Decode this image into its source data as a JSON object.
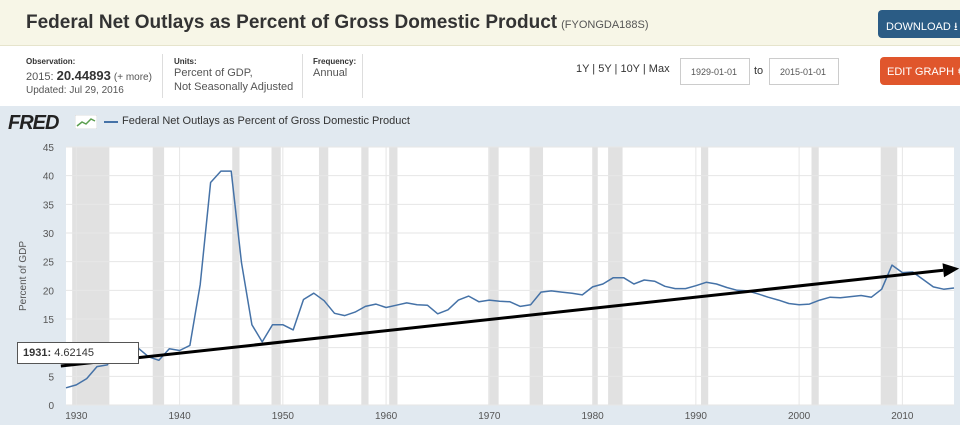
{
  "header": {
    "title": "Federal Net Outlays as Percent of Gross Domestic Product",
    "series_id": "(FYONGDA188S)",
    "download_label": "DOWNLOAD",
    "edit_label": "EDIT GRAPH"
  },
  "meta": {
    "observation_label": "Observation:",
    "observation_prefix": "2015:",
    "observation_value": "20.44893",
    "observation_more": "(+ more)",
    "updated": "Updated: Jul 29, 2016",
    "units_label": "Units:",
    "units_line1": "Percent of GDP,",
    "units_line2": "Not Seasonally Adjusted",
    "frequency_label": "Frequency:",
    "frequency_value": "Annual"
  },
  "range": {
    "options": "1Y | 5Y | 10Y | Max",
    "start": "1929-01-01",
    "to": "to",
    "end": "2015-01-01"
  },
  "legend": {
    "logo": "FRED",
    "series_name": "Federal Net Outlays as Percent of Gross Domestic Product",
    "line_color": "#4572a7"
  },
  "tooltip": {
    "year": "1931:",
    "value": "4.62145"
  },
  "chart_data": {
    "type": "line",
    "ylabel": "Percent of GDP",
    "xlim": [
      1929,
      2015
    ],
    "ylim": [
      0,
      45
    ],
    "grid": true,
    "x_ticks": [
      1930,
      1940,
      1950,
      1960,
      1970,
      1980,
      1990,
      2000,
      2010
    ],
    "y_ticks": [
      0,
      5,
      10,
      15,
      20,
      25,
      30,
      35,
      40,
      45
    ],
    "recessions": [
      [
        1929.6,
        1933.2
      ],
      [
        1937.4,
        1938.5
      ],
      [
        1945.1,
        1945.8
      ],
      [
        1948.9,
        1949.8
      ],
      [
        1953.5,
        1954.4
      ],
      [
        1957.6,
        1958.3
      ],
      [
        1960.3,
        1961.1
      ],
      [
        1969.9,
        1970.9
      ],
      [
        1973.9,
        1975.2
      ],
      [
        1980.0,
        1980.5
      ],
      [
        1981.5,
        1982.9
      ],
      [
        1990.5,
        1991.2
      ],
      [
        2001.2,
        2001.9
      ],
      [
        2007.9,
        2009.5
      ]
    ],
    "series": [
      {
        "color": "#4572a7",
        "x": [
          1929,
          1930,
          1931,
          1932,
          1933,
          1934,
          1935,
          1936,
          1937,
          1938,
          1939,
          1940,
          1941,
          1942,
          1943,
          1944,
          1945,
          1946,
          1947,
          1948,
          1949,
          1950,
          1951,
          1952,
          1953,
          1954,
          1955,
          1956,
          1957,
          1958,
          1959,
          1960,
          1961,
          1962,
          1963,
          1964,
          1965,
          1966,
          1967,
          1968,
          1969,
          1970,
          1971,
          1972,
          1973,
          1974,
          1975,
          1976,
          1977,
          1978,
          1979,
          1980,
          1981,
          1982,
          1983,
          1984,
          1985,
          1986,
          1987,
          1988,
          1989,
          1990,
          1991,
          1992,
          1993,
          1994,
          1995,
          1996,
          1997,
          1998,
          1999,
          2000,
          2001,
          2002,
          2003,
          2004,
          2005,
          2006,
          2007,
          2008,
          2009,
          2010,
          2011,
          2012,
          2013,
          2014,
          2015
        ],
        "y": [
          3.0,
          3.5,
          4.6,
          6.7,
          7.0,
          10.3,
          8.9,
          9.9,
          8.4,
          7.8,
          9.8,
          9.5,
          10.4,
          21.0,
          38.8,
          40.8,
          40.8,
          24.8,
          14.0,
          11.0,
          14.0,
          14.0,
          13.1,
          18.4,
          19.5,
          18.2,
          16.0,
          15.6,
          16.2,
          17.2,
          17.6,
          17.0,
          17.4,
          17.8,
          17.5,
          17.4,
          15.9,
          16.6,
          18.3,
          19.0,
          18.0,
          18.3,
          18.1,
          18.0,
          17.2,
          17.5,
          19.7,
          19.9,
          19.7,
          19.5,
          19.2,
          20.6,
          21.1,
          22.2,
          22.2,
          21.1,
          21.8,
          21.6,
          20.7,
          20.3,
          20.3,
          20.8,
          21.4,
          21.1,
          20.5,
          20.0,
          19.9,
          19.4,
          18.8,
          18.3,
          17.7,
          17.5,
          17.6,
          18.3,
          18.8,
          18.7,
          18.9,
          19.1,
          18.8,
          20.2,
          24.4,
          23.1,
          23.2,
          21.9,
          20.6,
          20.2,
          20.4
        ]
      }
    ],
    "annotation": {
      "type": "arrow",
      "color": "#000000",
      "from": [
        1928.5,
        6.8
      ],
      "to": [
        2015.5,
        23.8
      ]
    }
  }
}
